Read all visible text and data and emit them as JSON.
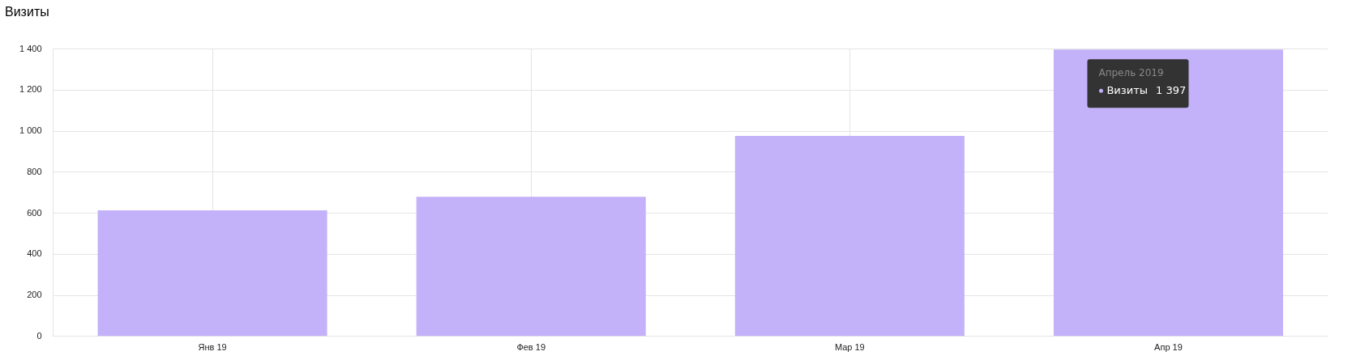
{
  "chart_data": {
    "type": "bar",
    "title": "Визиты",
    "categories": [
      "Янв 19",
      "Фев 19",
      "Мар 19",
      "Апр 19"
    ],
    "series": [
      {
        "name": "Визиты",
        "color": "#c3b1f9",
        "values": [
          614,
          680,
          977,
          1397
        ],
        "value_labels": [
          null,
          null,
          null,
          "1 397"
        ]
      }
    ],
    "ylim": [
      0,
      1400
    ],
    "yticks": [
      0,
      200,
      400,
      600,
      800,
      {
        "value": 1000,
        "label": "1 000"
      },
      {
        "value": 1200,
        "label": "1 200"
      },
      {
        "value": 1400,
        "label": "1 400"
      }
    ],
    "grid": true,
    "legend": false,
    "annotations": [
      "Апрель 2019"
    ]
  }
}
